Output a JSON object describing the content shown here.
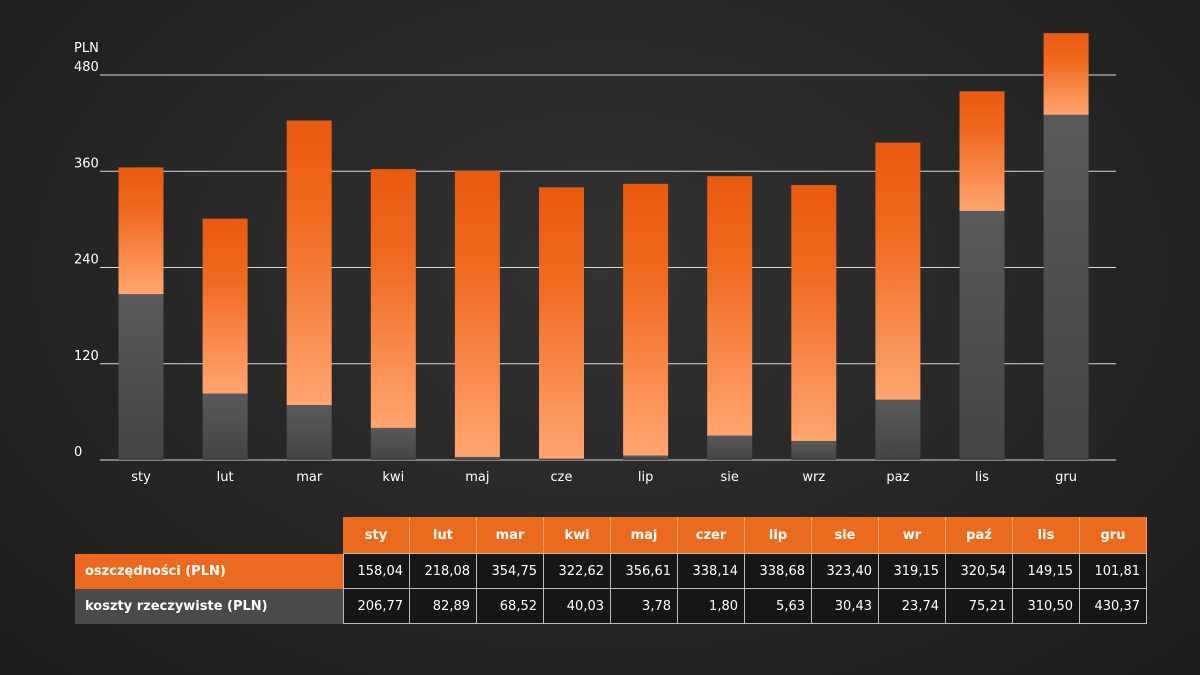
{
  "chart_data": {
    "type": "bar",
    "stacked": true,
    "ylabel": "PLN",
    "ylim": [
      0,
      480
    ],
    "yticks": [
      0,
      120,
      240,
      360,
      480
    ],
    "grid": true,
    "categories": [
      "sty",
      "lut",
      "mar",
      "kwi",
      "maj",
      "cze",
      "lip",
      "sie",
      "wrz",
      "paz",
      "lis",
      "gru"
    ],
    "series": [
      {
        "name": "koszty rzeczywiste (PLN)",
        "color": "#4d4d4d",
        "values": [
          206.77,
          82.89,
          68.52,
          40.03,
          3.78,
          1.8,
          5.63,
          30.43,
          23.74,
          75.21,
          310.5,
          430.37
        ]
      },
      {
        "name": "oszczędności (PLN)",
        "color": "#ec6a20",
        "values": [
          158.04,
          218.08,
          354.75,
          322.62,
          356.61,
          338.14,
          338.68,
          323.4,
          319.15,
          320.54,
          149.15,
          101.81
        ]
      }
    ]
  },
  "table": {
    "headers": [
      "sty",
      "lut",
      "mar",
      "kwi",
      "maj",
      "czer",
      "lip",
      "sie",
      "wr",
      "paź",
      "lis",
      "gru"
    ],
    "rows": [
      {
        "label": "oszczędności (PLN)",
        "values": [
          "158,04",
          "218,08",
          "354,75",
          "322,62",
          "356,61",
          "338,14",
          "338,68",
          "323,40",
          "319,15",
          "320,54",
          "149,15",
          "101,81"
        ]
      },
      {
        "label": "koszty rzeczywiste (PLN)",
        "values": [
          "206,77",
          "82,89",
          "68,52",
          "40,03",
          "3,78",
          "1,80",
          "5,63",
          "30,43",
          "23,74",
          "75,21",
          "310,50",
          "430,37"
        ]
      }
    ]
  }
}
